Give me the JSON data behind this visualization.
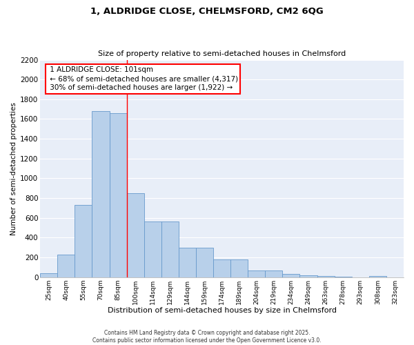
{
  "title1": "1, ALDRIDGE CLOSE, CHELMSFORD, CM2 6QG",
  "title2": "Size of property relative to semi-detached houses in Chelmsford",
  "xlabel": "Distribution of semi-detached houses by size in Chelmsford",
  "ylabel": "Number of semi-detached properties",
  "bar_labels": [
    "25sqm",
    "40sqm",
    "55sqm",
    "70sqm",
    "85sqm",
    "100sqm",
    "114sqm",
    "129sqm",
    "144sqm",
    "159sqm",
    "174sqm",
    "189sqm",
    "204sqm",
    "219sqm",
    "234sqm",
    "249sqm",
    "263sqm",
    "278sqm",
    "293sqm",
    "308sqm",
    "323sqm"
  ],
  "bar_values": [
    40,
    225,
    730,
    1680,
    1660,
    850,
    560,
    560,
    295,
    295,
    180,
    180,
    65,
    65,
    35,
    20,
    15,
    5,
    0,
    10,
    0
  ],
  "bar_color": "#b8d0ea",
  "bar_edge_color": "#6699cc",
  "property_line_x": 4.5,
  "property_sqm": 101,
  "pct_smaller": 68,
  "count_smaller": 4317,
  "pct_larger": 30,
  "count_larger": 1922,
  "annotation_label": "1 ALDRIDGE CLOSE: 101sqm",
  "ylim": [
    0,
    2200
  ],
  "yticks": [
    0,
    200,
    400,
    600,
    800,
    1000,
    1200,
    1400,
    1600,
    1800,
    2000,
    2200
  ],
  "bg_color": "#e8eef8",
  "grid_color": "#ffffff",
  "footer1": "Contains HM Land Registry data © Crown copyright and database right 2025.",
  "footer2": "Contains public sector information licensed under the Open Government Licence v3.0."
}
